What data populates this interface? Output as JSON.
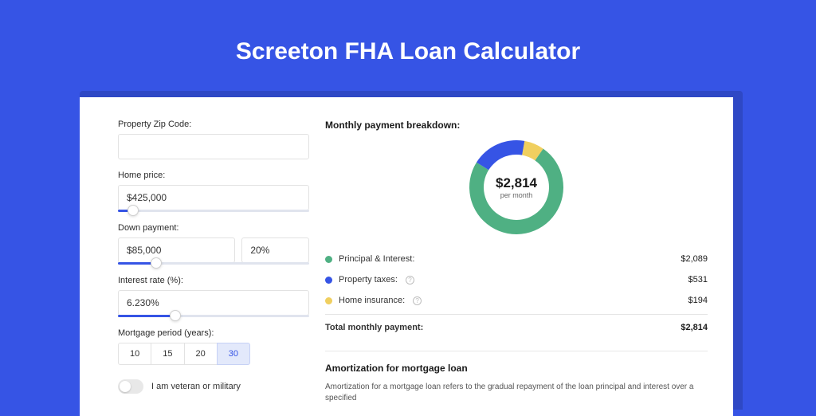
{
  "title": "Screeton FHA Loan Calculator",
  "colors": {
    "page_bg": "#3654e5",
    "card_bg": "#ffffff",
    "shadow_bg": "#2e48c5",
    "accent": "#3654e5",
    "green": "#4fb083",
    "blue": "#3654e5",
    "yellow": "#f0cf5f",
    "border": "#e2e2e2",
    "text": "#1a1a1a"
  },
  "form": {
    "zip": {
      "label": "Property Zip Code:",
      "value": ""
    },
    "home_price": {
      "label": "Home price:",
      "value": "$425,000",
      "slider_pct": 8
    },
    "down_payment": {
      "label": "Down payment:",
      "amount": "$85,000",
      "percent": "20%",
      "slider_pct": 20
    },
    "interest": {
      "label": "Interest rate (%):",
      "value": "6.230%",
      "slider_pct": 30
    },
    "period": {
      "label": "Mortgage period (years):",
      "options": [
        "10",
        "15",
        "20",
        "30"
      ],
      "selected": "30"
    },
    "veteran": {
      "label": "I am veteran or military",
      "checked": false
    }
  },
  "breakdown": {
    "title": "Monthly payment breakdown:",
    "total_value": "$2,814",
    "total_sub": "per month",
    "donut": {
      "size": 118,
      "thickness": 18,
      "slices": [
        {
          "label": "Principal & Interest:",
          "value": "$2,089",
          "pct": 74.2,
          "color": "#4fb083"
        },
        {
          "label": "Property taxes:",
          "value": "$531",
          "pct": 18.9,
          "color": "#3654e5",
          "info": true
        },
        {
          "label": "Home insurance:",
          "value": "$194",
          "pct": 6.9,
          "color": "#f0cf5f",
          "info": true
        }
      ]
    },
    "total_row": {
      "label": "Total monthly payment:",
      "value": "$2,814"
    }
  },
  "amortization": {
    "title": "Amortization for mortgage loan",
    "text": "Amortization for a mortgage loan refers to the gradual repayment of the loan principal and interest over a specified"
  }
}
